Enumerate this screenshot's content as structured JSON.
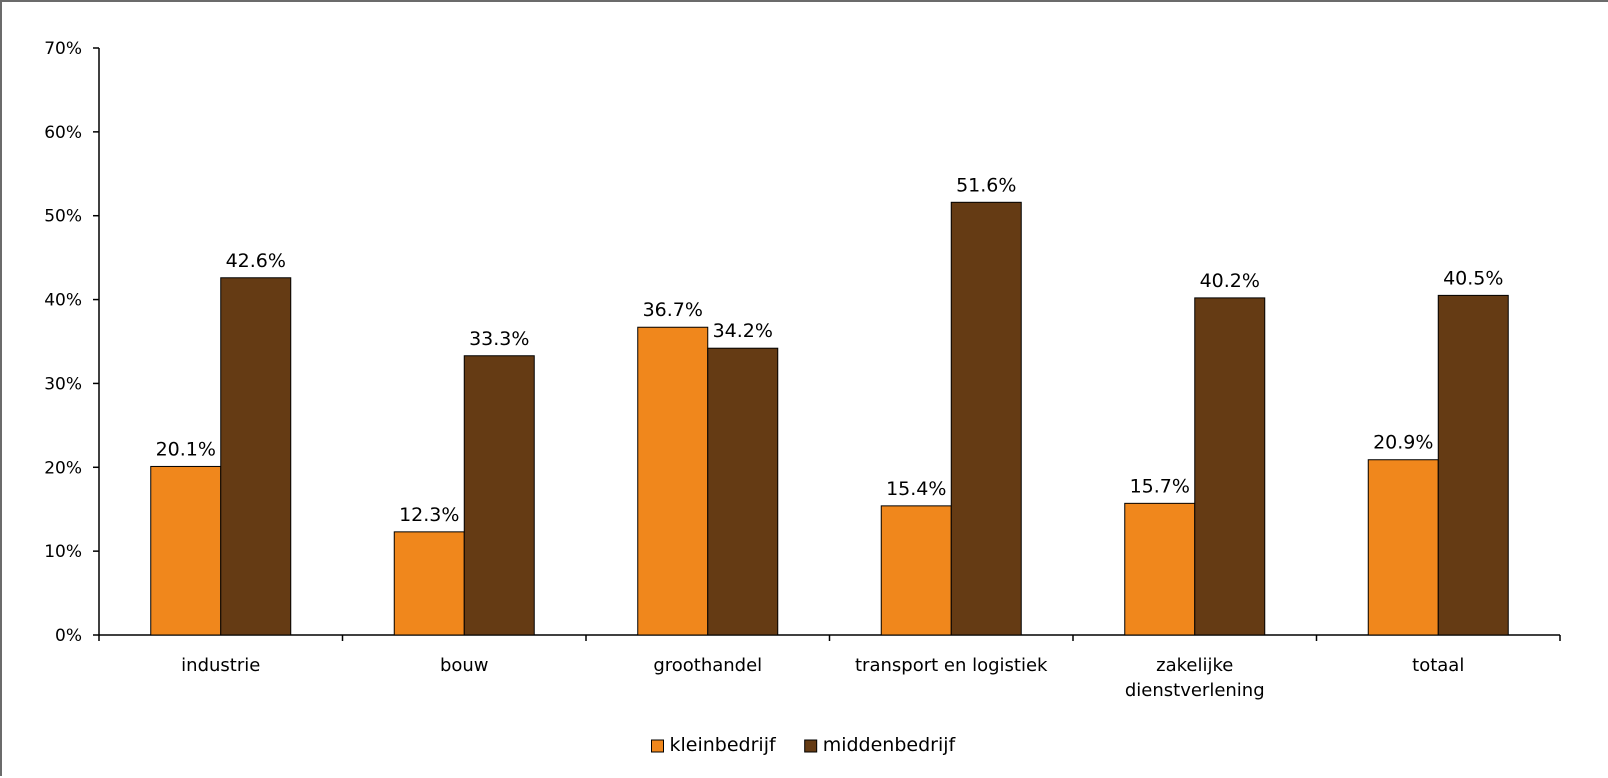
{
  "chart_data": {
    "type": "bar",
    "title": "",
    "xlabel": "",
    "ylabel": "",
    "ylim": [
      0,
      70
    ],
    "y_ticks": [
      "0%",
      "10%",
      "20%",
      "30%",
      "40%",
      "50%",
      "60%",
      "70%"
    ],
    "y_tick_values": [
      0,
      10,
      20,
      30,
      40,
      50,
      60,
      70
    ],
    "grid": false,
    "legend_position": "bottom-center",
    "categories": [
      [
        "industrie"
      ],
      [
        "bouw"
      ],
      [
        "groothandel"
      ],
      [
        "transport en logistiek"
      ],
      [
        "zakelijke",
        "dienstverlening"
      ],
      [
        "totaal"
      ]
    ],
    "series": [
      {
        "name": "kleinbedrijf",
        "color": "#F0871C",
        "values": [
          20.1,
          12.3,
          36.7,
          15.4,
          15.7,
          20.9
        ],
        "labels": [
          "20.1%",
          "12.3%",
          "36.7%",
          "15.4%",
          "15.7%",
          "20.9%"
        ]
      },
      {
        "name": "middenbedrijf",
        "color": "#653B14",
        "values": [
          42.6,
          33.3,
          34.2,
          51.6,
          40.2,
          40.5
        ],
        "labels": [
          "42.6%",
          "33.3%",
          "34.2%",
          "51.6%",
          "40.2%",
          "40.5%"
        ]
      }
    ]
  }
}
